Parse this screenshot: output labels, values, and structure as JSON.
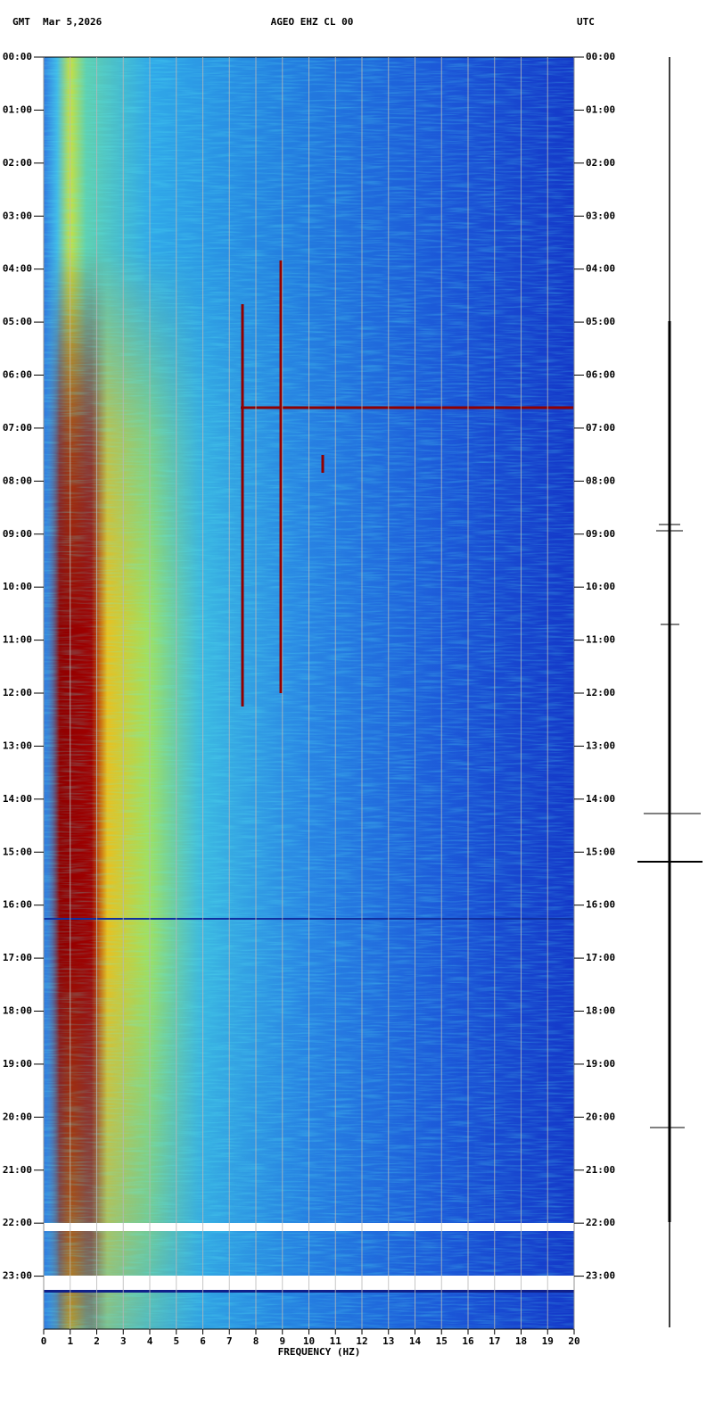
{
  "chart_data": {
    "type": "spectrogram",
    "title": "AGEO EHZ CL 00",
    "date": "Mar 5,2026",
    "left_label": "GMT",
    "right_label": "UTC",
    "xlabel": "FREQUENCY (HZ)",
    "xlim": [
      0,
      20
    ],
    "xticks": [
      0,
      1,
      2,
      3,
      4,
      5,
      6,
      7,
      8,
      9,
      10,
      11,
      12,
      13,
      14,
      15,
      16,
      17,
      18,
      19,
      20
    ],
    "ylim": [
      0,
      24
    ],
    "y_inverted": true,
    "grid": true,
    "yticks": [
      {
        "value": 0,
        "label": "00:00"
      },
      {
        "value": 1,
        "label": "01:00"
      },
      {
        "value": 2,
        "label": "02:00"
      },
      {
        "value": 3,
        "label": "03:00"
      },
      {
        "value": 4,
        "label": "04:00"
      },
      {
        "value": 5,
        "label": "05:00"
      },
      {
        "value": 6,
        "label": "06:00"
      },
      {
        "value": 7,
        "label": "07:00"
      },
      {
        "value": 8,
        "label": "08:00"
      },
      {
        "value": 9,
        "label": "09:00"
      },
      {
        "value": 10,
        "label": "10:00"
      },
      {
        "value": 11,
        "label": "11:00"
      },
      {
        "value": 12,
        "label": "12:00"
      },
      {
        "value": 13,
        "label": "13:00"
      },
      {
        "value": 14,
        "label": "14:00"
      },
      {
        "value": 15,
        "label": "15:00"
      },
      {
        "value": 16,
        "label": "16:00"
      },
      {
        "value": 17,
        "label": "17:00"
      },
      {
        "value": 18,
        "label": "18:00"
      },
      {
        "value": 19,
        "label": "19:00"
      },
      {
        "value": 20,
        "label": "20:00"
      },
      {
        "value": 21,
        "label": "21:00"
      },
      {
        "value": 22,
        "label": "22:00"
      },
      {
        "value": 23,
        "label": "23:00"
      }
    ]
  }
}
